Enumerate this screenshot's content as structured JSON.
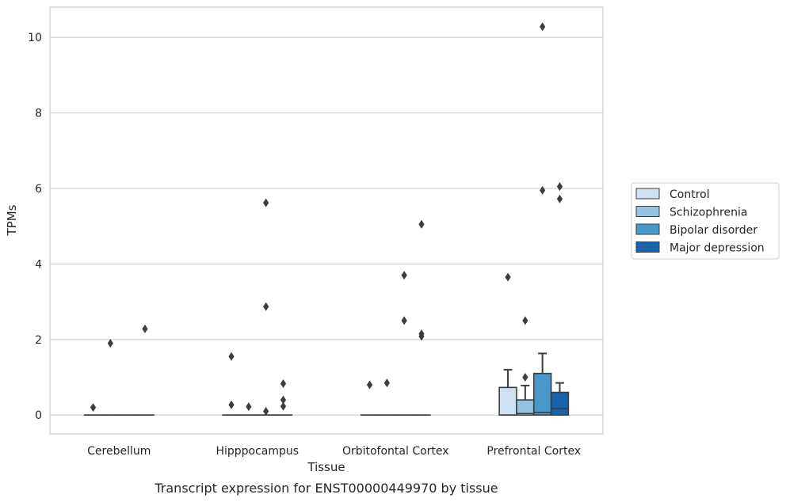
{
  "chart_data": {
    "type": "box",
    "title": "Transcript expression for ENST00000449970 by tissue",
    "xlabel": "Tissue",
    "ylabel": "TPMs",
    "ylim": [
      -0.5,
      10.8
    ],
    "yticks": [
      0,
      2,
      4,
      6,
      8,
      10
    ],
    "grid": "horizontal",
    "legend_position": "right",
    "categories": [
      "Cerebellum",
      "Hipppocampus",
      "Orbitofontal Cortex",
      "Prefrontal Cortex"
    ],
    "series": [
      {
        "name": "Control",
        "color": "#d0e1f2",
        "boxes": [
          {
            "q1": 0,
            "median": 0,
            "q3": 0,
            "whisker_low": 0,
            "whisker_high": 0,
            "outliers": [
              0.2
            ]
          },
          {
            "q1": 0,
            "median": 0,
            "q3": 0,
            "whisker_low": 0,
            "whisker_high": 0,
            "outliers": [
              1.55,
              0.27
            ]
          },
          {
            "q1": 0,
            "median": 0,
            "q3": 0,
            "whisker_low": 0,
            "whisker_high": 0,
            "outliers": [
              0.8
            ]
          },
          {
            "q1": 0,
            "median": 0,
            "q3": 0.73,
            "whisker_low": 0,
            "whisker_high": 1.2,
            "outliers": [
              3.65
            ]
          }
        ]
      },
      {
        "name": "Schizophrenia",
        "color": "#94c4df",
        "boxes": [
          {
            "q1": 0,
            "median": 0,
            "q3": 0,
            "whisker_low": 0,
            "whisker_high": 0,
            "outliers": [
              1.9
            ]
          },
          {
            "q1": 0,
            "median": 0,
            "q3": 0,
            "whisker_low": 0,
            "whisker_high": 0,
            "outliers": [
              0.22
            ]
          },
          {
            "q1": 0,
            "median": 0,
            "q3": 0,
            "whisker_low": 0,
            "whisker_high": 0,
            "outliers": [
              0.85
            ]
          },
          {
            "q1": 0,
            "median": 0.04,
            "q3": 0.4,
            "whisker_low": 0,
            "whisker_high": 0.78,
            "outliers": [
              2.5,
              1.0
            ]
          }
        ]
      },
      {
        "name": "Bipolar disorder",
        "color": "#4a98c9",
        "boxes": [
          {
            "q1": 0,
            "median": 0,
            "q3": 0,
            "whisker_low": 0,
            "whisker_high": 0,
            "outliers": []
          },
          {
            "q1": 0,
            "median": 0,
            "q3": 0,
            "whisker_low": 0,
            "whisker_high": 0,
            "outliers": [
              5.62,
              2.87,
              0.1
            ]
          },
          {
            "q1": 0,
            "median": 0,
            "q3": 0,
            "whisker_low": 0,
            "whisker_high": 0,
            "outliers": [
              3.7,
              2.5
            ]
          },
          {
            "q1": 0,
            "median": 0.07,
            "q3": 1.1,
            "whisker_low": 0,
            "whisker_high": 1.63,
            "outliers": [
              10.28,
              5.95
            ]
          }
        ]
      },
      {
        "name": "Major depression",
        "color": "#1764ab",
        "boxes": [
          {
            "q1": 0,
            "median": 0,
            "q3": 0,
            "whisker_low": 0,
            "whisker_high": 0,
            "outliers": [
              2.28
            ]
          },
          {
            "q1": 0,
            "median": 0,
            "q3": 0,
            "whisker_low": 0,
            "whisker_high": 0,
            "outliers": [
              0.83,
              0.4,
              0.23
            ]
          },
          {
            "q1": 0,
            "median": 0,
            "q3": 0,
            "whisker_low": 0,
            "whisker_high": 0,
            "outliers": [
              5.05,
              2.15,
              2.08
            ]
          },
          {
            "q1": 0,
            "median": 0.17,
            "q3": 0.6,
            "whisker_low": 0,
            "whisker_high": 0.85,
            "outliers": [
              6.05,
              5.72
            ]
          }
        ]
      }
    ]
  }
}
